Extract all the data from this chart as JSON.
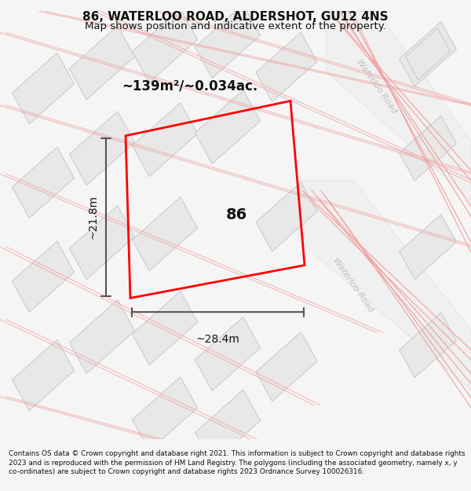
{
  "title_line1": "86, WATERLOO ROAD, ALDERSHOT, GU12 4NS",
  "title_line2": "Map shows position and indicative extent of the property.",
  "footer_text": "Contains OS data © Crown copyright and database right 2021. This information is subject to Crown copyright and database rights 2023 and is reproduced with the permission of HM Land Registry. The polygons (including the associated geometry, namely x, y co-ordinates) are subject to Crown copyright and database rights 2023 Ordnance Survey 100026316.",
  "bg_color": "#f5f5f5",
  "plot_color": "#ff0000",
  "pink": "#f0a0a0",
  "building_fill": "#e8e8e8",
  "building_edge": "#c8c8c8",
  "road_fill": "#eeeeee",
  "road_edge": "#d8d8d8",
  "road_label_color": "#c0c0c0",
  "dim_color": "#555555",
  "area_text": "~139m²/~0.034ac.",
  "dim_width": "~28.4m",
  "dim_height": "~21.8m",
  "property_number": "86",
  "road_label": "Waterloo Road"
}
